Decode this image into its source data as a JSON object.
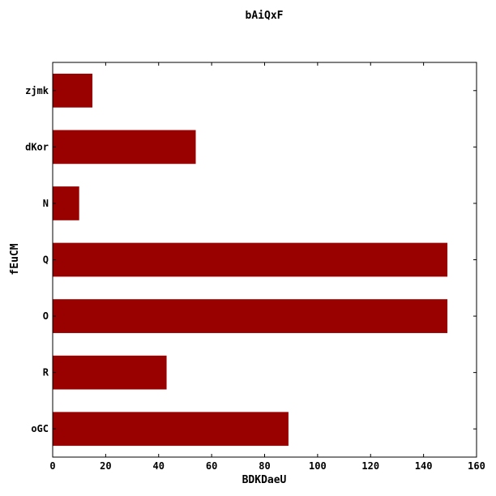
{
  "chart_data": {
    "type": "bar",
    "orientation": "horizontal",
    "title": "bAiQxF",
    "xlabel": "BDKDaeU",
    "ylabel": "fEuCM",
    "categories": [
      "zjmk",
      "dKor",
      "N",
      "Q",
      "O",
      "R",
      "oGC"
    ],
    "values": [
      15,
      54,
      10,
      149,
      149,
      43,
      89
    ],
    "xlim": [
      0,
      160
    ],
    "xticks": [
      0,
      20,
      40,
      60,
      80,
      100,
      120,
      140,
      160
    ],
    "grid": false,
    "bar_color": "#990000"
  }
}
